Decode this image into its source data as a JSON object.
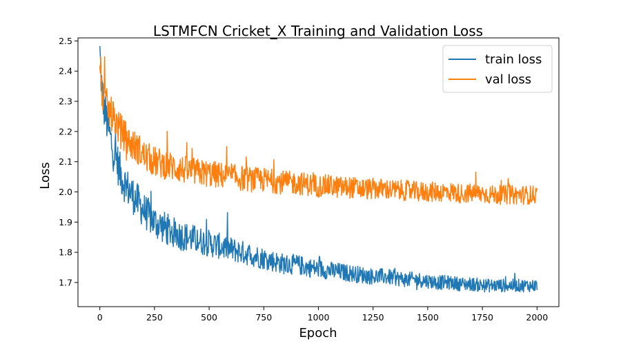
{
  "chart_data": {
    "type": "line",
    "title": "LSTMFCN Cricket_X Training and Validation Loss",
    "xlabel": "Epoch",
    "ylabel": "Loss",
    "xlim": [
      -100,
      2100
    ],
    "ylim": [
      1.62,
      2.51
    ],
    "xticks": [
      0,
      250,
      500,
      750,
      1000,
      1250,
      1500,
      1750,
      2000
    ],
    "yticks": [
      1.7,
      1.8,
      1.9,
      2.0,
      2.1,
      2.2,
      2.3,
      2.4,
      2.5
    ],
    "grid": false,
    "legend_position": "top-right",
    "series": [
      {
        "name": "train loss",
        "color": "#1f77b4",
        "x": [
          0,
          10,
          20,
          30,
          40,
          50,
          60,
          70,
          80,
          90,
          100,
          120,
          140,
          160,
          180,
          200,
          225,
          250,
          275,
          300,
          350,
          400,
          450,
          500,
          550,
          600,
          650,
          700,
          750,
          800,
          850,
          900,
          950,
          1000,
          1050,
          1100,
          1150,
          1200,
          1250,
          1300,
          1350,
          1400,
          1450,
          1500,
          1550,
          1600,
          1650,
          1700,
          1750,
          1800,
          1850,
          1900,
          1950,
          2000
        ],
        "y": [
          2.46,
          2.33,
          2.28,
          2.24,
          2.21,
          2.17,
          2.14,
          2.12,
          2.1,
          2.07,
          2.05,
          2.02,
          2.0,
          1.98,
          1.96,
          1.94,
          1.92,
          1.9,
          1.89,
          1.88,
          1.86,
          1.85,
          1.84,
          1.83,
          1.82,
          1.81,
          1.8,
          1.79,
          1.78,
          1.77,
          1.76,
          1.76,
          1.75,
          1.745,
          1.74,
          1.735,
          1.73,
          1.725,
          1.72,
          1.72,
          1.715,
          1.71,
          1.71,
          1.705,
          1.7,
          1.7,
          1.695,
          1.695,
          1.69,
          1.69,
          1.69,
          1.69,
          1.69,
          1.69
        ]
      },
      {
        "name": "val loss",
        "color": "#ff7f0e",
        "x": [
          0,
          10,
          20,
          30,
          40,
          50,
          60,
          70,
          80,
          90,
          100,
          120,
          140,
          160,
          180,
          200,
          225,
          250,
          275,
          300,
          350,
          400,
          450,
          500,
          550,
          600,
          650,
          700,
          750,
          800,
          850,
          900,
          950,
          1000,
          1050,
          1100,
          1150,
          1200,
          1250,
          1300,
          1350,
          1400,
          1450,
          1500,
          1550,
          1600,
          1650,
          1700,
          1750,
          1800,
          1850,
          1900,
          1950,
          2000
        ],
        "y": [
          2.43,
          2.33,
          2.3,
          2.29,
          2.27,
          2.26,
          2.25,
          2.24,
          2.22,
          2.21,
          2.2,
          2.18,
          2.16,
          2.15,
          2.14,
          2.12,
          2.11,
          2.1,
          2.095,
          2.09,
          2.08,
          2.07,
          2.065,
          2.06,
          2.055,
          2.05,
          2.045,
          2.04,
          2.04,
          2.035,
          2.03,
          2.03,
          2.025,
          2.02,
          2.02,
          2.015,
          2.015,
          2.01,
          2.01,
          2.01,
          2.005,
          2.005,
          2.0,
          2.0,
          2.0,
          2.0,
          1.995,
          1.995,
          1.995,
          1.99,
          1.99,
          1.99,
          1.99,
          1.99
        ]
      }
    ]
  }
}
